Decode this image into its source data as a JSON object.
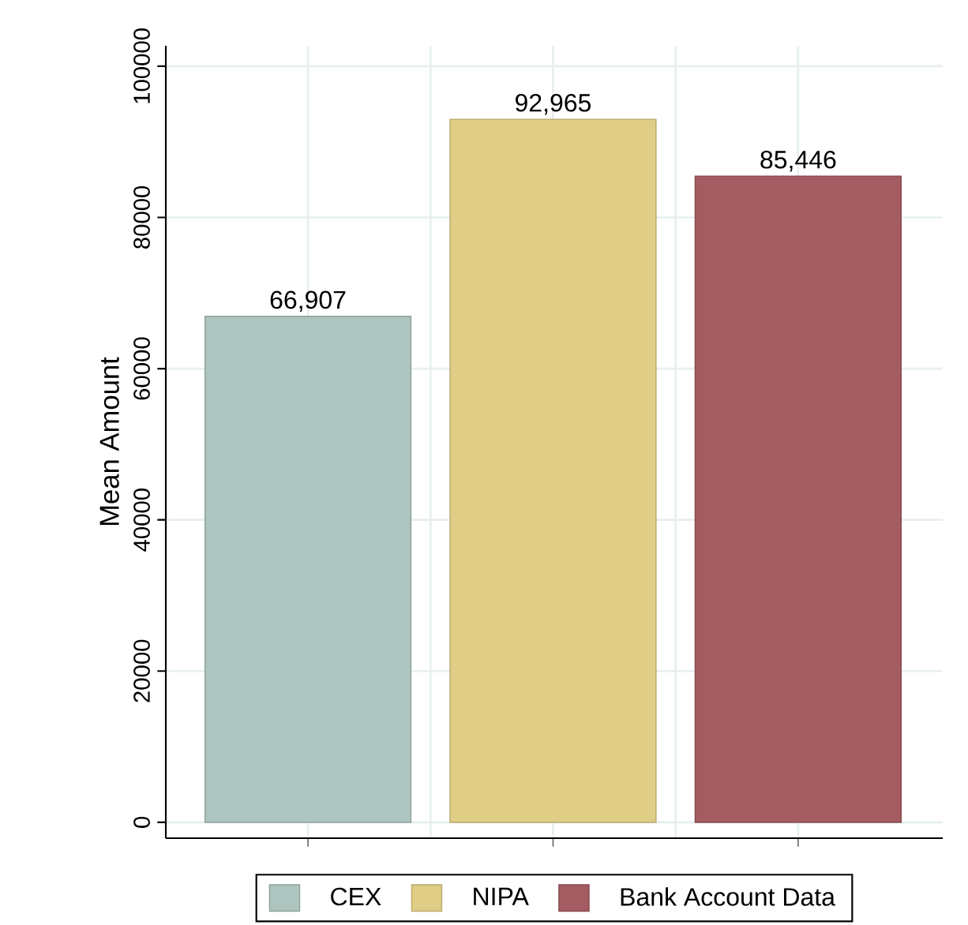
{
  "chart_data": {
    "type": "bar",
    "ylabel": "Mean Amount",
    "categories": [
      null,
      null,
      null
    ],
    "series": [
      {
        "name": "CEX",
        "color": "#adc4bf",
        "values": [
          66907,
          null,
          null
        ],
        "value_labels": [
          "66,907",
          null,
          null
        ]
      },
      {
        "name": "NIPA",
        "color": "#e0cd86",
        "values": [
          null,
          92965,
          null
        ],
        "value_labels": [
          null,
          "92,965",
          null
        ]
      },
      {
        "name": "Bank Account Data",
        "color": "#a45c62",
        "values": [
          null,
          null,
          85446
        ],
        "value_labels": [
          null,
          null,
          "85,446"
        ]
      }
    ],
    "ylim": [
      -2100,
      102700
    ],
    "yticks": [
      0,
      20000,
      40000,
      60000,
      80000,
      100000
    ],
    "grid": true,
    "legend": "bottom"
  }
}
